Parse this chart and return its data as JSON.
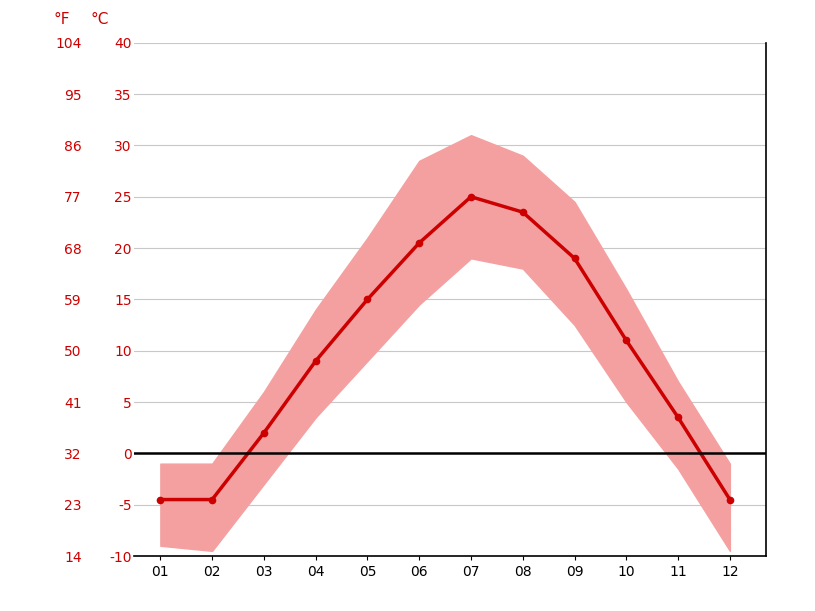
{
  "months": [
    1,
    2,
    3,
    4,
    5,
    6,
    7,
    8,
    9,
    10,
    11,
    12
  ],
  "month_labels": [
    "01",
    "02",
    "03",
    "04",
    "05",
    "06",
    "07",
    "08",
    "09",
    "10",
    "11",
    "12"
  ],
  "mean_temp_c": [
    -4.5,
    -4.5,
    2.0,
    9.0,
    15.0,
    20.5,
    25.0,
    23.5,
    19.0,
    11.0,
    3.5,
    -4.5
  ],
  "max_temp_c": [
    -1.0,
    -1.0,
    6.0,
    14.0,
    21.0,
    28.5,
    31.0,
    29.0,
    24.5,
    16.0,
    7.0,
    -1.0
  ],
  "min_temp_c": [
    -9.0,
    -9.5,
    -3.0,
    3.5,
    9.0,
    14.5,
    19.0,
    18.0,
    12.5,
    5.0,
    -1.5,
    -9.5
  ],
  "ylim_c": [
    -10,
    40
  ],
  "yticks_c": [
    -10,
    -5,
    0,
    5,
    10,
    15,
    20,
    25,
    30,
    35,
    40
  ],
  "yticks_f": [
    14,
    23,
    32,
    41,
    50,
    59,
    68,
    77,
    86,
    95,
    104
  ],
  "line_color": "#cc0000",
  "band_color": "#f5a0a0",
  "zero_line_color": "#000000",
  "grid_color": "#c8c8c8",
  "axis_label_color": "#cc0000",
  "tick_label_color": "#cc0000",
  "background_color": "#ffffff",
  "label_F": "°F",
  "label_C": "°C"
}
